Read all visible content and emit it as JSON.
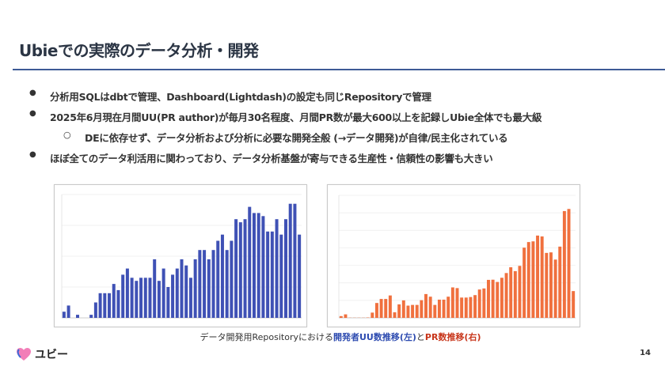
{
  "slide": {
    "title": "Ubieでの実際のデータ分析・開発",
    "bullets": [
      "分析用SQLはdbtで管理、Dashboard(Lightdash)の設定も同じRepositoryで管理",
      "2025年6月現在月間UU(PR author)が毎月30名程度、月間PR数が最大600以上を記録しUbie全体でも最大級",
      "DEに依存せず、データ分析および分析に必要な開発全般 (→データ開発)が自律/民主化されている",
      "ほぼ全てのデータ利活用に関わっており、データ分析基盤が寄与できる生産性・信頼性の影響も大きい"
    ],
    "caption": {
      "prefix": "データ開発用Repositoryにおける",
      "blue": "開発者UU数推移(左)",
      "mid": "と",
      "red": "PR数推移(右)"
    },
    "logo_text": "ユビー",
    "page_number": "14"
  },
  "chart_data": [
    {
      "type": "bar",
      "title": "開発者UU数推移",
      "color": "#3f51b5",
      "ylim": [
        0,
        40
      ],
      "grid": true,
      "values": [
        2,
        4,
        0,
        1,
        0,
        0,
        1,
        5,
        8,
        8,
        8,
        11,
        9,
        14,
        16,
        13,
        12,
        13,
        13,
        13,
        19,
        12,
        16,
        10,
        14,
        16,
        19,
        17,
        13,
        19,
        22,
        22,
        19,
        22,
        25,
        27,
        22,
        25,
        32,
        31,
        32,
        36,
        34,
        34,
        33,
        28,
        28,
        32,
        27,
        32,
        37,
        37,
        27
      ]
    },
    {
      "type": "bar",
      "title": "PR数推移",
      "color": "#f0703e",
      "ylim": [
        0,
        700
      ],
      "grid": true,
      "values": [
        10,
        20,
        1,
        1,
        1,
        1,
        2,
        30,
        85,
        108,
        108,
        128,
        32,
        77,
        100,
        70,
        74,
        74,
        101,
        136,
        121,
        74,
        104,
        104,
        121,
        174,
        170,
        116,
        116,
        119,
        130,
        162,
        168,
        217,
        218,
        205,
        229,
        256,
        289,
        267,
        297,
        401,
        433,
        437,
        470,
        465,
        371,
        374,
        333,
        407,
        610,
        622,
        153
      ]
    }
  ]
}
